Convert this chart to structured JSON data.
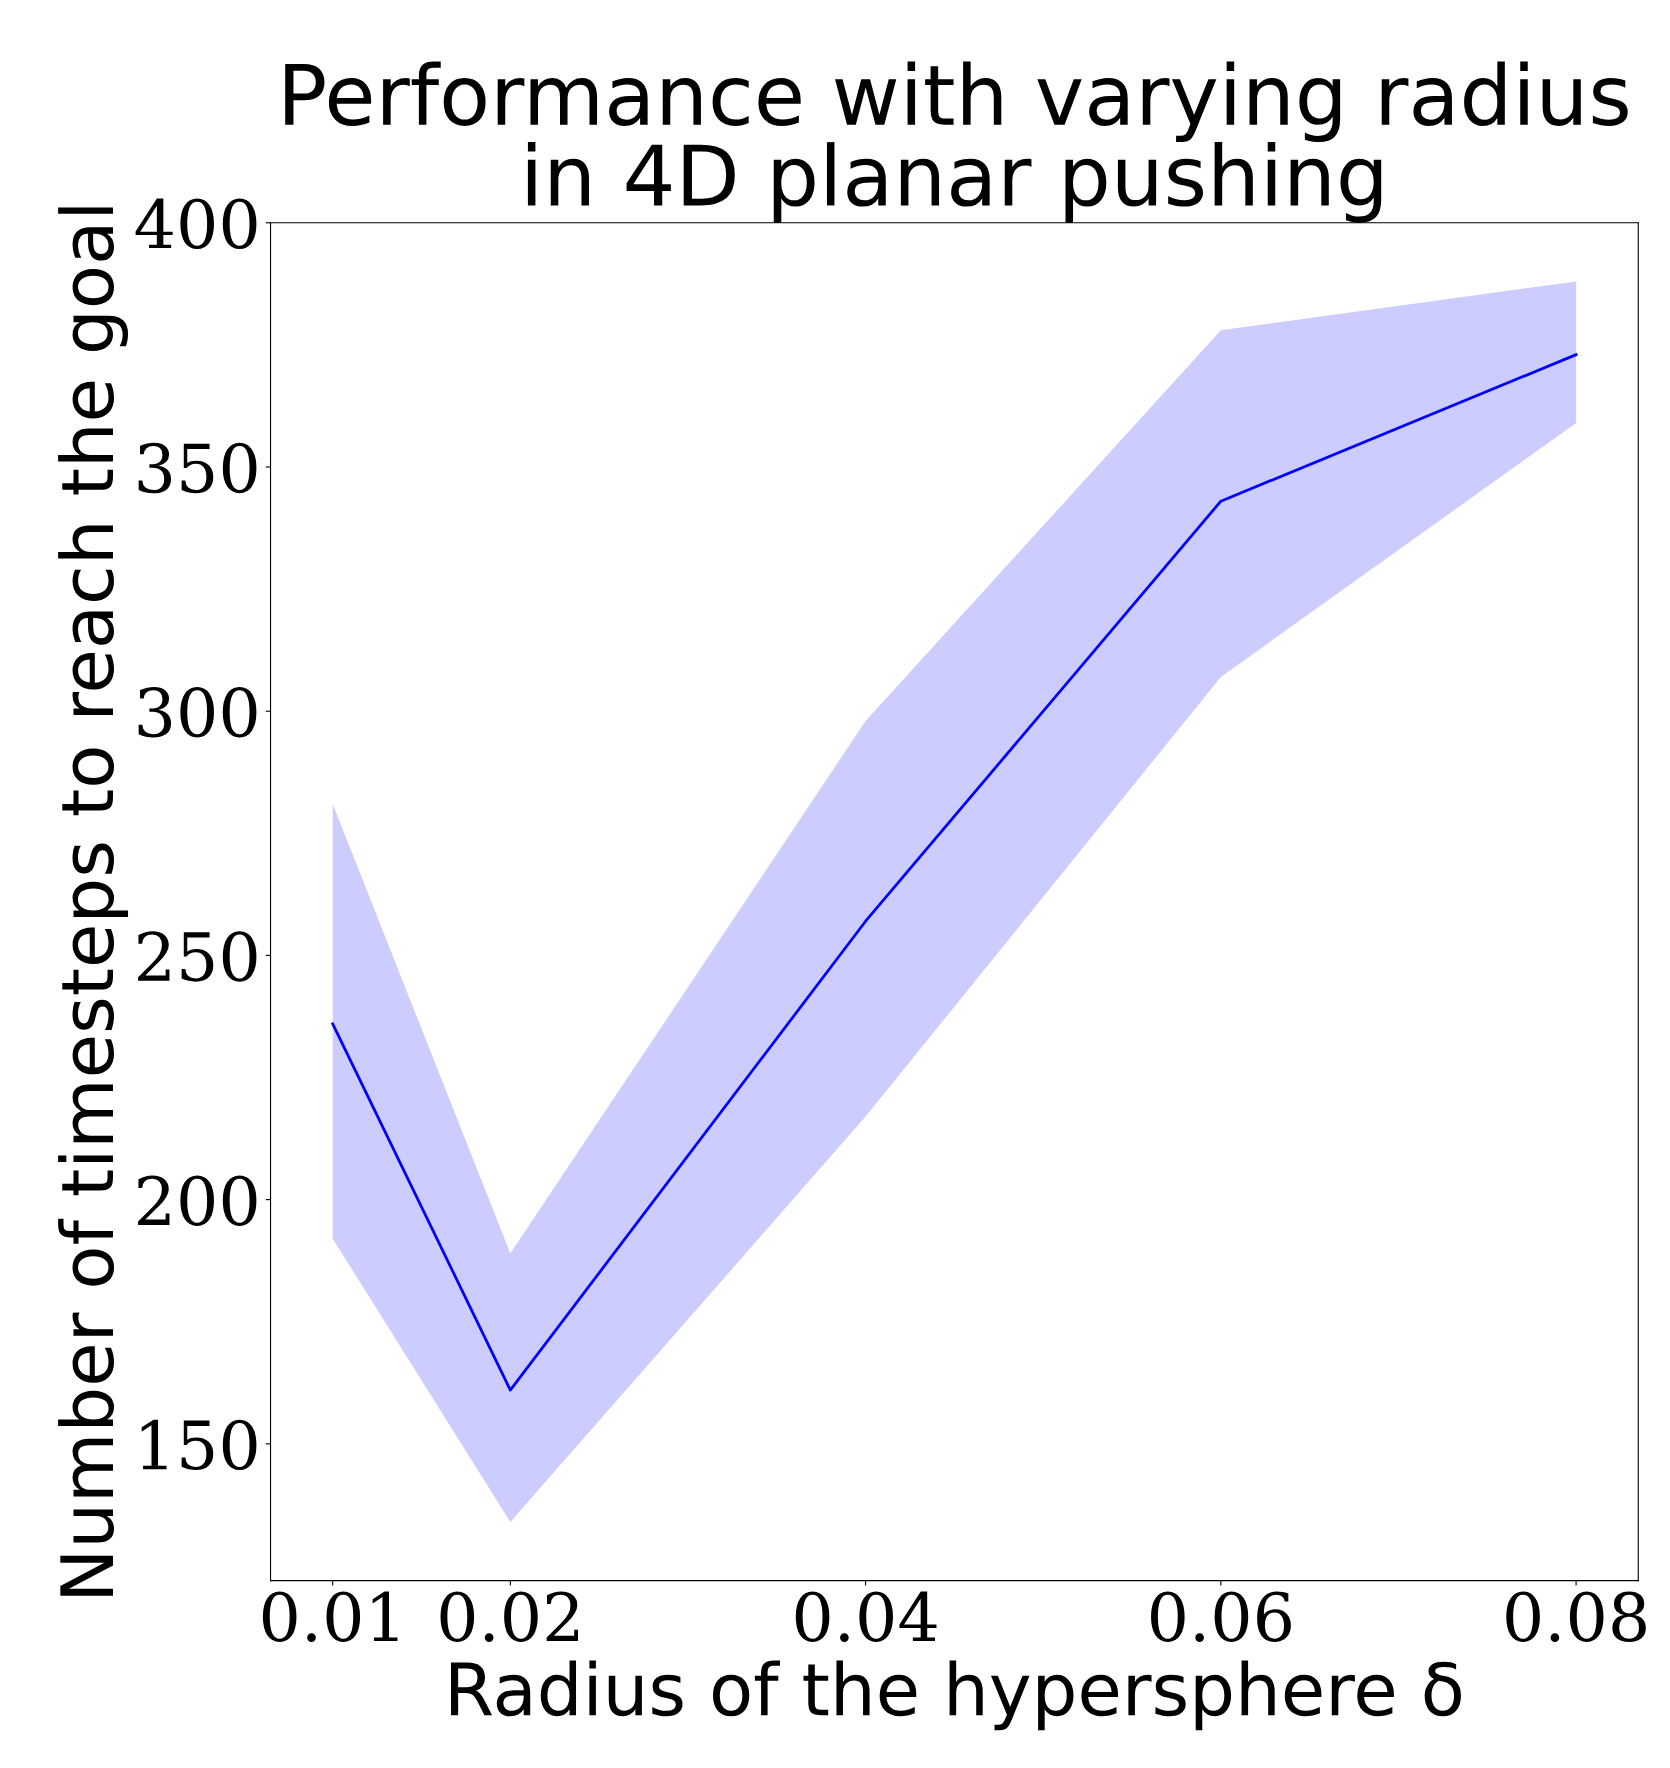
{
  "chart_data": {
    "type": "line",
    "title": "Performance with varying radius\nin 4D planar pushing",
    "xlabel": "Radius of the hypersphere δ",
    "ylabel": "Number of timesteps to reach the goal",
    "x": [
      0.01,
      0.02,
      0.04,
      0.06,
      0.08
    ],
    "series": [
      {
        "color": "#0000ff",
        "values": [
          236,
          161,
          257,
          343,
          373
        ],
        "lower": [
          192,
          134,
          217,
          307,
          359
        ],
        "upper": [
          281,
          189,
          298,
          378,
          388
        ]
      }
    ],
    "xlim": [
      0.0065,
      0.0835
    ],
    "ylim": [
      122,
      400
    ],
    "xticks": [
      0.01,
      0.02,
      0.04,
      0.06,
      0.08
    ],
    "yticks": [
      150,
      200,
      250,
      300,
      350,
      400
    ],
    "grid": false,
    "legend": false,
    "marker": "none",
    "line_style": "solid"
  }
}
